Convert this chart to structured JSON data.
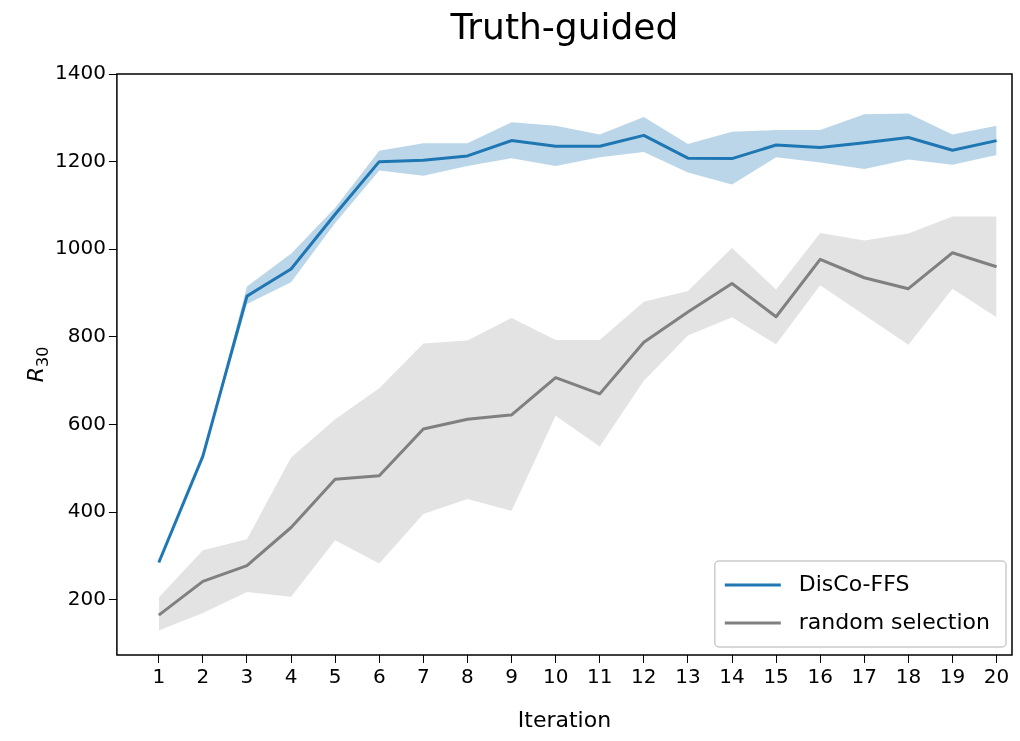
{
  "chart_data": {
    "type": "line",
    "title": "Truth-guided",
    "xlabel": "Iteration",
    "ylabel": "R$_{30}$",
    "xlim": [
      0.05,
      20.35
    ],
    "ylim": [
      74,
      1400
    ],
    "xticks": [
      1,
      2,
      3,
      4,
      5,
      6,
      7,
      8,
      9,
      10,
      11,
      12,
      13,
      14,
      15,
      16,
      17,
      18,
      19,
      20
    ],
    "yticks": [
      200,
      400,
      600,
      800,
      1000,
      1200,
      1400
    ],
    "x": [
      1,
      2,
      3,
      4,
      5,
      6,
      7,
      8,
      9,
      10,
      11,
      12,
      13,
      14,
      15,
      16,
      17,
      18,
      19,
      20
    ],
    "legend": "bottom right",
    "grid": false,
    "marker": "none",
    "line_style": "solid",
    "series": [
      {
        "name": "DisCo-FFS",
        "color": "#1f77b4",
        "values": [
          285,
          528,
          893,
          955,
          1080,
          1200,
          1203,
          1213,
          1248,
          1235,
          1235,
          1260,
          1208,
          1207,
          1238,
          1232,
          1243,
          1255,
          1226,
          1248
        ],
        "lower": [
          285,
          528,
          875,
          925,
          1060,
          1180,
          1168,
          1190,
          1208,
          1190,
          1210,
          1222,
          1175,
          1148,
          1210,
          1198,
          1183,
          1205,
          1193,
          1215
        ],
        "upper": [
          285,
          528,
          915,
          990,
          1095,
          1225,
          1242,
          1242,
          1290,
          1282,
          1262,
          1302,
          1240,
          1268,
          1272,
          1272,
          1308,
          1310,
          1262,
          1282
        ]
      },
      {
        "name": "random selection",
        "color": "#808080",
        "values": [
          165,
          242,
          278,
          365,
          475,
          483,
          590,
          612,
          622,
          707,
          670,
          788,
          857,
          922,
          846,
          977,
          935,
          910,
          992,
          960
        ],
        "lower": [
          130,
          170,
          218,
          207,
          336,
          283,
          396,
          430,
          403,
          620,
          550,
          700,
          803,
          845,
          783,
          918,
          850,
          782,
          910,
          845
        ],
        "upper": [
          205,
          313,
          338,
          525,
          612,
          683,
          785,
          792,
          843,
          793,
          793,
          880,
          905,
          1003,
          908,
          1037,
          1020,
          1036,
          1075,
          1075
        ]
      }
    ]
  }
}
